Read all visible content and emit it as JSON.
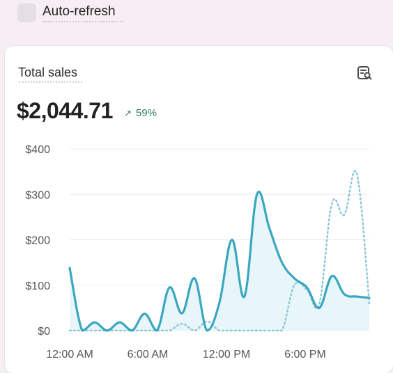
{
  "toolbar": {
    "auto_refresh_label": "Auto-refresh",
    "auto_refresh_checked": false
  },
  "card": {
    "title": "Total sales",
    "total": "$2,044.71",
    "change": "59%",
    "change_direction": "up",
    "report_icon": "report-search-icon"
  },
  "chart_data": {
    "type": "line",
    "title": "",
    "xlabel": "",
    "ylabel": "",
    "ylim": [
      0,
      400
    ],
    "y_ticks": [
      "$0",
      "$100",
      "$200",
      "$300",
      "$400"
    ],
    "x_ticks": [
      "12:00 AM",
      "6:00 AM",
      "12:00 PM",
      "6:00 PM"
    ],
    "grid": true,
    "colors": {
      "current": "#3aa6bf",
      "previous": "#8cc8d6",
      "fill": "#e6f5f9"
    },
    "series": [
      {
        "style": "solid",
        "x": [
          0,
          1,
          2,
          3,
          4,
          5,
          6,
          7,
          8,
          9,
          10,
          11,
          12,
          13,
          14,
          15,
          16,
          17,
          18,
          19,
          20,
          21,
          22,
          23,
          24
        ],
        "values": [
          138,
          0,
          18,
          0,
          18,
          0,
          37,
          0,
          95,
          38,
          115,
          0,
          62,
          200,
          75,
          300,
          225,
          150,
          115,
          95,
          50,
          120,
          80,
          75,
          72
        ]
      },
      {
        "style": "dotted",
        "x": [
          0,
          1,
          2,
          3,
          4,
          5,
          6,
          7,
          8,
          9,
          10,
          11,
          12,
          13,
          14,
          15,
          16,
          17,
          18,
          19,
          20,
          21,
          22,
          23,
          24
        ],
        "values": [
          0,
          0,
          0,
          0,
          0,
          0,
          0,
          0,
          0,
          15,
          0,
          20,
          0,
          0,
          0,
          0,
          0,
          0,
          100,
          90,
          60,
          280,
          255,
          345,
          60
        ]
      }
    ]
  }
}
